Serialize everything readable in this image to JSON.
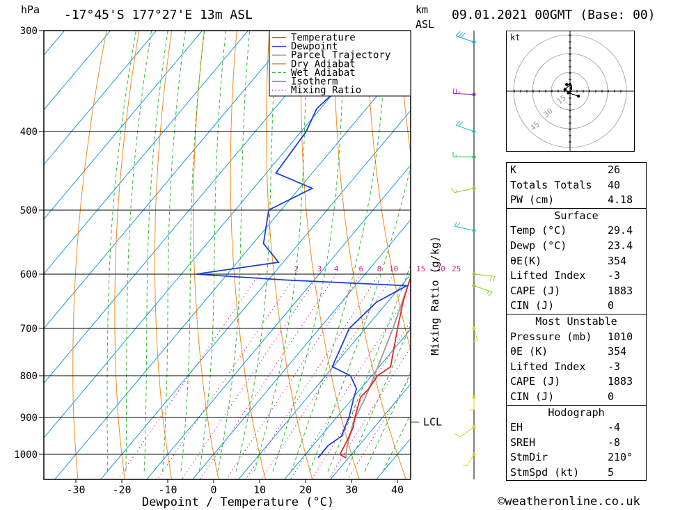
{
  "header": {
    "pressure_unit": "hPa",
    "location": "-17°45'S 177°27'E 13m ASL",
    "height_unit_line1": "km",
    "height_unit_line2": "ASL",
    "datetime": "09.01.2021 00GMT (Base: 00)"
  },
  "footer": {
    "copyright": "©weatheronline.co.uk"
  },
  "chart_data": {
    "type": "skew-t log-p diagram",
    "xlabel": "Dewpoint / Temperature (°C)",
    "ylabel": "",
    "secondary_label": "Mixing Ratio (g/kg)",
    "pressure_ticks": [
      300,
      400,
      500,
      600,
      700,
      800,
      900,
      1000
    ],
    "temperature_ticks": [
      -30,
      -20,
      -10,
      0,
      10,
      20,
      30,
      40
    ],
    "mixing_ratio_labels": [
      "2",
      "3",
      "4",
      "6",
      "8",
      "10",
      "15",
      "20",
      "25"
    ],
    "lcl_label": "LCL",
    "lcl_pressure": 912,
    "legend": [
      {
        "name": "Temperature",
        "color": "#e8262a",
        "style": "solid"
      },
      {
        "name": "Dewpoint",
        "color": "#1d3fd6",
        "style": "solid"
      },
      {
        "name": "Parcel Trajectory",
        "color": "#a0a0a0",
        "style": "solid"
      },
      {
        "name": "Dry Adiabat",
        "color": "#f08c1e",
        "style": "solid"
      },
      {
        "name": "Wet Adiabat",
        "color": "#2fb82f",
        "style": "dashed"
      },
      {
        "name": "Isotherm",
        "color": "#1a9ee0",
        "style": "solid"
      },
      {
        "name": "Mixing Ratio",
        "color": "#d0208a",
        "style": "dotted"
      }
    ],
    "series": [
      {
        "name": "Temperature",
        "points": [
          [
            1010,
            29.4
          ],
          [
            1000,
            27.5
          ],
          [
            960,
            26.5
          ],
          [
            925,
            25.4
          ],
          [
            900,
            24
          ],
          [
            850,
            21.5
          ],
          [
            830,
            21.8
          ],
          [
            800,
            21.3
          ],
          [
            780,
            22.5
          ],
          [
            750,
            20.5
          ],
          [
            700,
            17
          ],
          [
            650,
            13.4
          ],
          [
            620,
            11.4
          ],
          [
            600,
            10.2
          ],
          [
            580,
            7.8
          ],
          [
            560,
            5.9
          ],
          [
            540,
            4.9
          ],
          [
            500,
            0.6
          ],
          [
            470,
            -2.6
          ],
          [
            460,
            -3.2
          ],
          [
            440,
            -3.7
          ],
          [
            400,
            -8.3
          ],
          [
            375,
            -11.4
          ],
          [
            350,
            -14.5
          ],
          [
            330,
            -16.6
          ],
          [
            300,
            -21.8
          ]
        ]
      },
      {
        "name": "Dewpoint",
        "points": [
          [
            1010,
            23.4
          ],
          [
            975,
            23.3
          ],
          [
            950,
            24.5
          ],
          [
            900,
            22.7
          ],
          [
            850,
            20.1
          ],
          [
            830,
            19.1
          ],
          [
            800,
            15.4
          ],
          [
            780,
            9.8
          ],
          [
            700,
            6.5
          ],
          [
            650,
            7.6
          ],
          [
            620,
            11.2
          ],
          [
            610,
            -16.4
          ],
          [
            600,
            -36.8
          ],
          [
            580,
            -21
          ],
          [
            550,
            -27.7
          ],
          [
            500,
            -32.7
          ],
          [
            470,
            -27.2
          ],
          [
            450,
            -37.9
          ],
          [
            400,
            -38.9
          ],
          [
            375,
            -40.8
          ],
          [
            350,
            -39.6
          ],
          [
            300,
            -55
          ]
        ]
      },
      {
        "name": "Parcel Trajectory",
        "points": [
          [
            1010,
            29.4
          ],
          [
            980,
            27.7
          ],
          [
            912,
            24.5
          ],
          [
            850,
            22.6
          ],
          [
            800,
            20.6
          ],
          [
            700,
            16
          ],
          [
            600,
            10.2
          ],
          [
            500,
            2.8
          ],
          [
            400,
            -7.2
          ],
          [
            350,
            -14
          ],
          [
            330,
            -17
          ]
        ]
      }
    ],
    "wind_barbs": [
      {
        "pressure": 1000,
        "dir": 200,
        "spd": 5
      },
      {
        "pressure": 925,
        "dir": 220,
        "spd": 10
      },
      {
        "pressure": 850,
        "dir": 180,
        "spd": 5
      },
      {
        "pressure": 700,
        "dir": 170,
        "spd": 5
      },
      {
        "pressure": 620,
        "dir": 120,
        "spd": 15
      },
      {
        "pressure": 600,
        "dir": 100,
        "spd": 20
      },
      {
        "pressure": 530,
        "dir": 290,
        "spd": 20
      },
      {
        "pressure": 470,
        "dir": 250,
        "spd": 15
      },
      {
        "pressure": 430,
        "dir": 270,
        "spd": 15
      },
      {
        "pressure": 400,
        "dir": 300,
        "spd": 20
      },
      {
        "pressure": 360,
        "dir": 275,
        "spd": 25
      },
      {
        "pressure": 310,
        "dir": 300,
        "spd": 30
      }
    ],
    "hodograph": {
      "unit_label": "kt",
      "ring_labels": [
        "15",
        "30",
        "45"
      ],
      "points": [
        [
          -2,
          4
        ],
        [
          0,
          4
        ],
        [
          -3,
          1
        ],
        [
          -1,
          -1
        ],
        [
          5,
          -3
        ]
      ]
    }
  },
  "indices": {
    "rows": [
      {
        "label": "K",
        "value": "26"
      },
      {
        "label": "Totals Totals",
        "value": "40"
      },
      {
        "label": "PW (cm)",
        "value": "4.18"
      }
    ]
  },
  "surface": {
    "title": "Surface",
    "rows": [
      {
        "label": "Temp (°C)",
        "value": "29.4"
      },
      {
        "label": "Dewp (°C)",
        "value": "23.4"
      },
      {
        "label": "θE(K)",
        "value": "354"
      },
      {
        "label": "Lifted Index",
        "value": "-3"
      },
      {
        "label": "CAPE (J)",
        "value": "1883"
      },
      {
        "label": "CIN (J)",
        "value": "0"
      }
    ]
  },
  "most_unstable": {
    "title": "Most Unstable",
    "rows": [
      {
        "label": "Pressure (mb)",
        "value": "1010"
      },
      {
        "label": "θE (K)",
        "value": "354"
      },
      {
        "label": "Lifted Index",
        "value": "-3"
      },
      {
        "label": "CAPE (J)",
        "value": "1883"
      },
      {
        "label": "CIN (J)",
        "value": "0"
      }
    ]
  },
  "hodograph_table": {
    "title": "Hodograph",
    "rows": [
      {
        "label": "EH",
        "value": "-4"
      },
      {
        "label": "SREH",
        "value": "-8"
      },
      {
        "label": "StmDir",
        "value": "210°"
      },
      {
        "label": "StmSpd (kt)",
        "value": "5"
      }
    ]
  }
}
